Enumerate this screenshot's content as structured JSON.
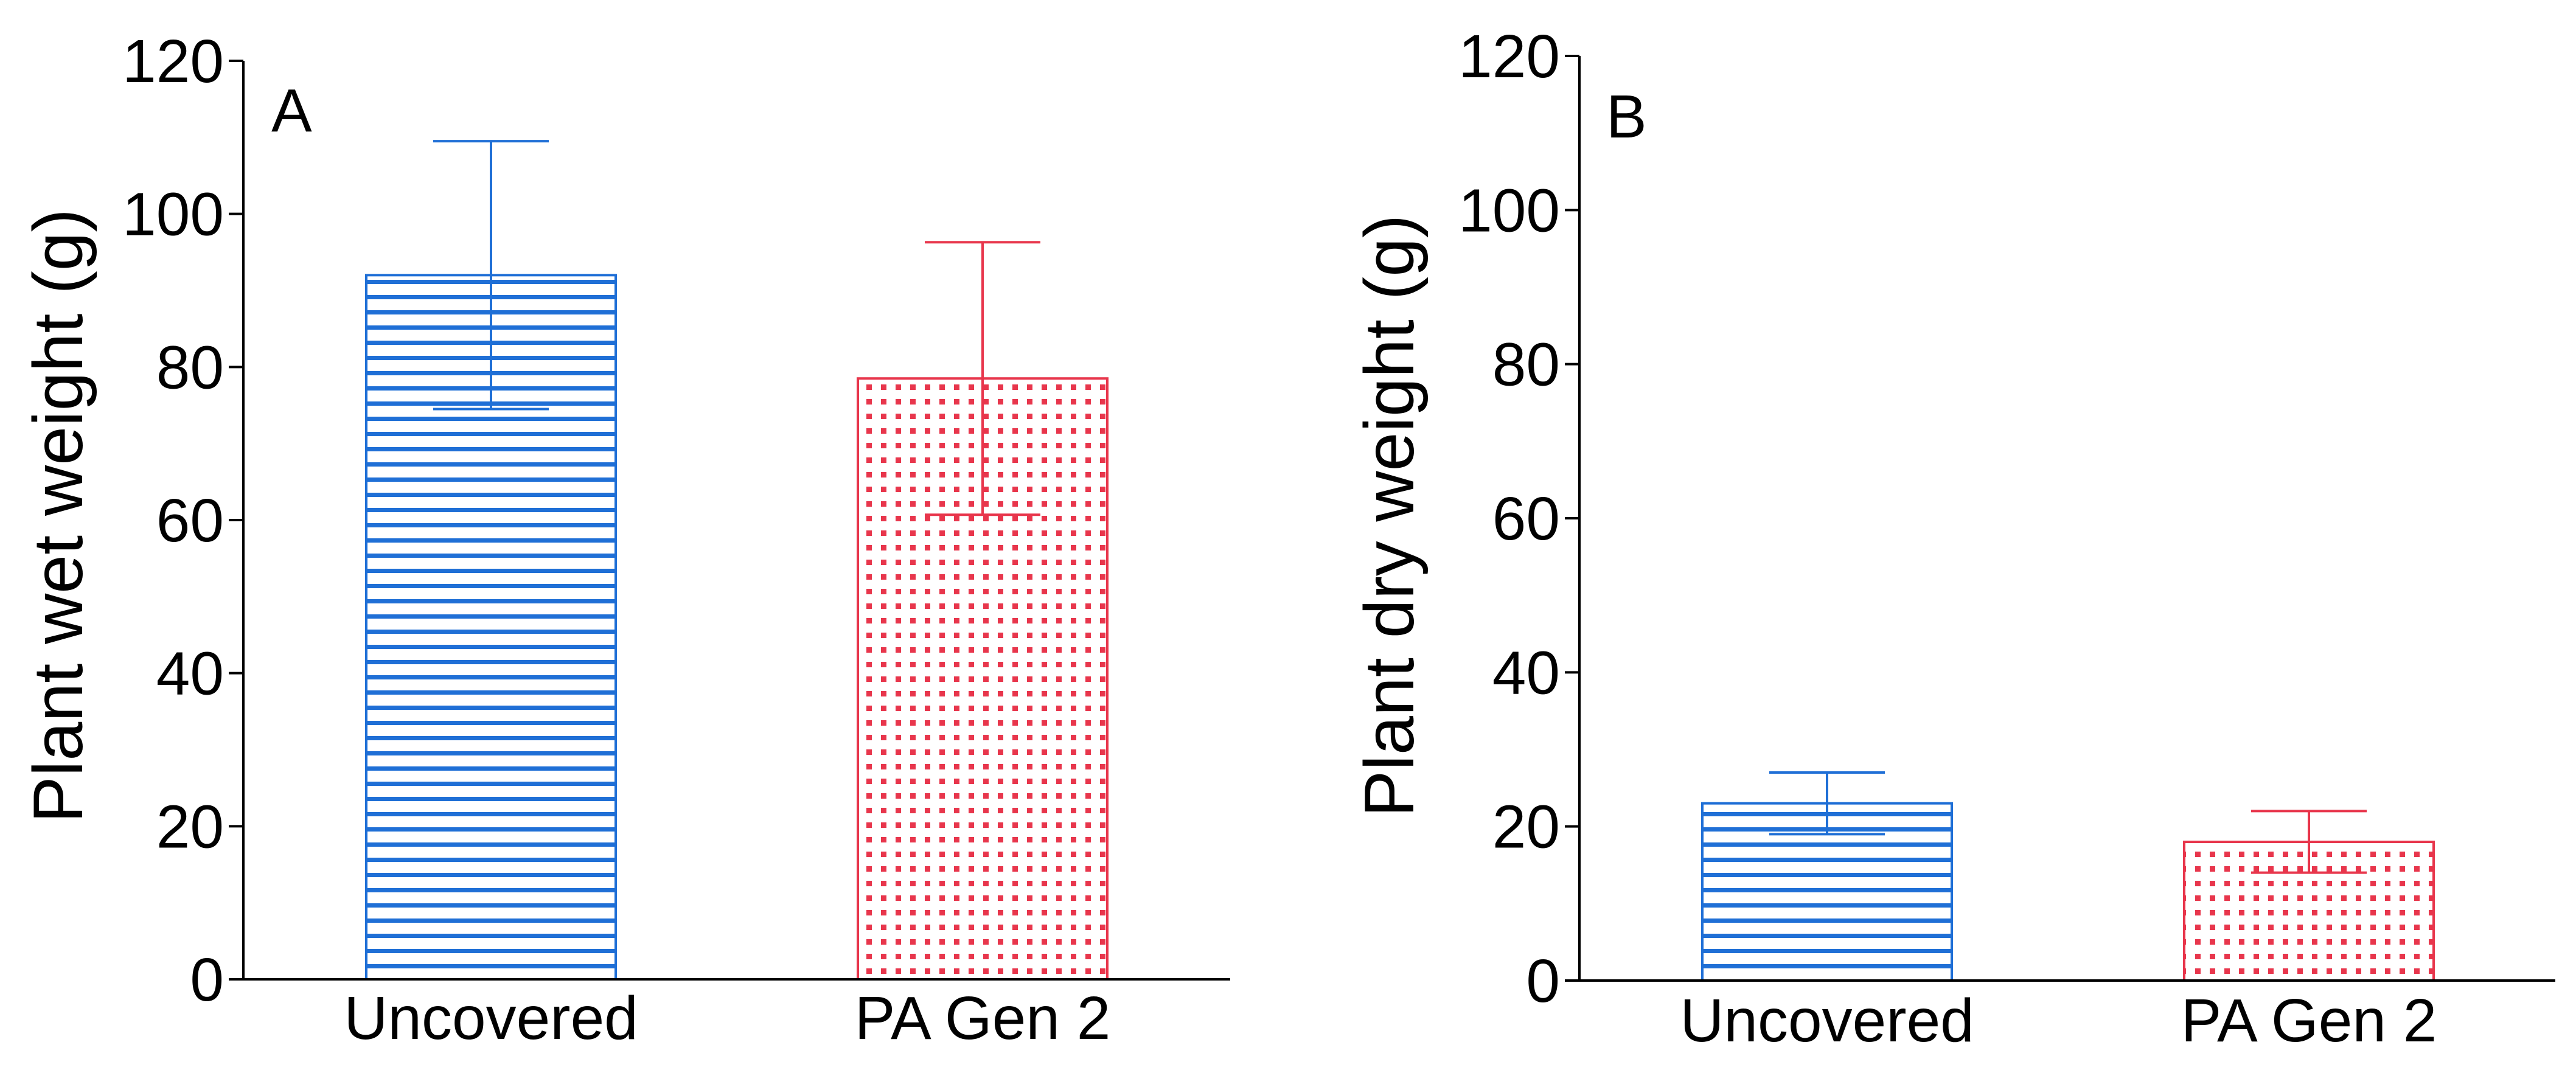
{
  "colors": {
    "uncovered": "#1f6fd6",
    "pa_gen_2": "#e8364c",
    "axis": "#000000",
    "background": "#ffffff"
  },
  "chart_data": [
    {
      "type": "bar",
      "panel_label": "A",
      "categories": [
        "Uncovered",
        "PA Gen 2"
      ],
      "values": [
        92,
        78.5
      ],
      "error": [
        17.5,
        17.8
      ],
      "patterns": [
        "horizontal-stripes",
        "dots"
      ],
      "title": "",
      "xlabel": "",
      "ylabel": "Plant wet weight (g)",
      "ylim": [
        0,
        120
      ],
      "yticks": [
        "0",
        "20",
        "40",
        "60",
        "80",
        "100",
        "120"
      ],
      "grid": false,
      "legend": "none"
    },
    {
      "type": "bar",
      "panel_label": "B",
      "categories": [
        "Uncovered",
        "PA Gen 2"
      ],
      "values": [
        23,
        18
      ],
      "error": [
        4,
        4
      ],
      "patterns": [
        "horizontal-stripes",
        "dots"
      ],
      "title": "",
      "xlabel": "",
      "ylabel": "Plant dry weight (g)",
      "ylim": [
        0,
        120
      ],
      "yticks": [
        "0",
        "20",
        "40",
        "60",
        "80",
        "100",
        "120"
      ],
      "grid": false,
      "legend": "none"
    }
  ]
}
